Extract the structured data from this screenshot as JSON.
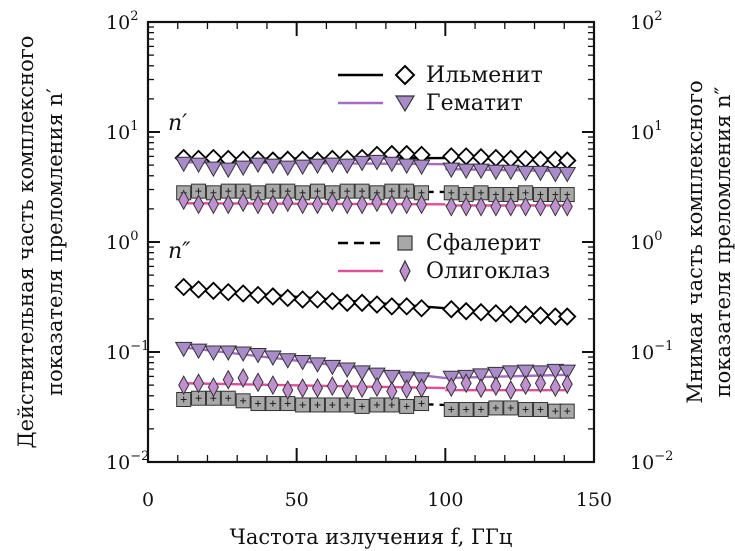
{
  "chart_data": {
    "type": "scatter",
    "xlabel": "Частота излучения f, ГГц",
    "ylabel_left_line1": "Действительная часть комплексного",
    "ylabel_left_line2": "показателя преломления n′",
    "ylabel_right_line1": "Мнимая часть комплексного",
    "ylabel_right_line2": "показателя преломления n″",
    "xlim": [
      0,
      150
    ],
    "ylim": [
      0.01,
      100
    ],
    "yscale": "log",
    "x_ticks": [
      "0",
      "50",
      "100",
      "150"
    ],
    "y_tick_bases": [
      "10",
      "10",
      "10",
      "10",
      "10"
    ],
    "y_tick_exps": [
      "−2",
      "−1",
      "0",
      "1",
      "2"
    ],
    "panel_labels": [
      "n′",
      "n″"
    ],
    "legend_upper": [
      "Ильменит",
      "Гематит"
    ],
    "legend_lower": [
      "Сфалерит",
      "Олигоклаз"
    ],
    "colors": {
      "ilmenite": "#000000",
      "hematite": "#a56cc1",
      "sphalerite": "#000000",
      "oligoclase": "#e0509a",
      "hematite_marker_fill": "#a98bc9",
      "sphalerite_marker_fill": "#a8a8a8",
      "oligoclase_marker_fill": "#c08fd0"
    },
    "x": [
      12,
      17,
      22,
      27,
      32,
      37,
      42,
      47,
      52,
      57,
      62,
      67,
      72,
      77,
      82,
      87,
      92,
      97,
      102,
      107,
      112,
      117,
      122,
      127,
      132,
      137,
      141
    ],
    "series": [
      {
        "name": "Ильменит",
        "part": "n′",
        "line_segments": [
          [
            [
              12,
              5.7
            ],
            [
              100,
              5.8
            ]
          ],
          [
            [
              100,
              6.0
            ],
            [
              141,
              5.7
            ]
          ]
        ],
        "values": [
          5.8,
          5.7,
          5.8,
          5.7,
          5.6,
          5.6,
          5.5,
          5.6,
          5.6,
          5.5,
          5.7,
          5.7,
          5.8,
          6.2,
          6.3,
          6.3,
          6.2,
          null,
          6.0,
          6.0,
          5.9,
          5.8,
          5.7,
          5.7,
          5.6,
          5.6,
          5.5
        ]
      },
      {
        "name": "Гематит",
        "part": "n′",
        "line_segments": [
          [
            [
              12,
              5.3
            ],
            [
              100,
              5.1
            ]
          ],
          [
            [
              100,
              4.6
            ],
            [
              141,
              4.4
            ]
          ]
        ],
        "values": [
          5.2,
          5.1,
          4.7,
          4.6,
          4.8,
          5.1,
          5.0,
          4.8,
          4.9,
          5.0,
          5.1,
          5.0,
          5.3,
          5.4,
          5.2,
          5.0,
          4.9,
          null,
          4.6,
          4.5,
          4.5,
          4.4,
          4.4,
          4.3,
          4.3,
          4.2,
          4.2
        ]
      },
      {
        "name": "Сфалерит",
        "part": "n′",
        "line_segments": [
          [
            [
              12,
              2.85
            ],
            [
              100,
              2.85
            ]
          ],
          [
            [
              100,
              2.75
            ],
            [
              141,
              2.75
            ]
          ]
        ],
        "values": [
          2.8,
          2.9,
          2.8,
          2.9,
          2.9,
          2.8,
          2.9,
          2.9,
          2.8,
          2.9,
          2.8,
          2.9,
          2.9,
          2.8,
          2.9,
          2.9,
          2.8,
          null,
          2.8,
          2.7,
          2.8,
          2.7,
          2.7,
          2.8,
          2.7,
          2.7,
          2.7
        ]
      },
      {
        "name": "Олигоклаз",
        "part": "n′",
        "line_segments": [
          [
            [
              12,
              2.25
            ],
            [
              100,
              2.2
            ]
          ],
          [
            [
              100,
              2.15
            ],
            [
              141,
              2.15
            ]
          ]
        ],
        "values": [
          2.4,
          2.2,
          2.2,
          2.2,
          2.3,
          2.2,
          2.2,
          2.3,
          2.2,
          2.2,
          2.3,
          2.2,
          2.2,
          2.3,
          2.2,
          2.2,
          2.2,
          null,
          2.1,
          2.1,
          2.1,
          2.1,
          2.1,
          2.1,
          2.1,
          2.1,
          2.1
        ]
      },
      {
        "name": "Ильменит",
        "part": "n″",
        "line_segments": [
          [
            [
              12,
              0.38
            ],
            [
              100,
              0.25
            ]
          ],
          [
            [
              100,
              0.245
            ],
            [
              141,
              0.21
            ]
          ]
        ],
        "values": [
          0.39,
          0.37,
          0.36,
          0.35,
          0.34,
          0.33,
          0.32,
          0.31,
          0.3,
          0.3,
          0.29,
          0.28,
          0.28,
          0.27,
          0.26,
          0.26,
          0.25,
          null,
          0.245,
          0.235,
          0.23,
          0.225,
          0.22,
          0.22,
          0.215,
          0.21,
          0.21
        ]
      },
      {
        "name": "Гематит",
        "part": "n″",
        "line_segments": [
          [
            [
              12,
              0.11
            ],
            [
              100,
              0.058
            ]
          ],
          [
            [
              100,
              0.058
            ],
            [
              141,
              0.062
            ]
          ]
        ],
        "values": [
          0.108,
          0.104,
          0.1,
          0.1,
          0.098,
          0.095,
          0.09,
          0.085,
          0.082,
          0.078,
          0.074,
          0.07,
          0.066,
          0.063,
          0.06,
          0.058,
          0.057,
          null,
          0.059,
          0.06,
          0.062,
          0.064,
          0.066,
          0.067,
          0.066,
          0.068,
          0.067
        ]
      },
      {
        "name": "Сфалерит",
        "part": "n″",
        "line_segments": [
          [
            [
              12,
              0.039
            ],
            [
              100,
              0.033
            ]
          ],
          [
            [
              100,
              0.03
            ],
            [
              141,
              0.03
            ]
          ]
        ],
        "values": [
          0.037,
          0.038,
          0.038,
          0.038,
          0.036,
          0.034,
          0.034,
          0.034,
          0.033,
          0.033,
          0.033,
          0.033,
          0.032,
          0.033,
          0.033,
          0.032,
          0.034,
          null,
          0.03,
          0.03,
          0.03,
          0.031,
          0.031,
          0.03,
          0.03,
          0.029,
          0.029
        ]
      },
      {
        "name": "Олигоклаз",
        "part": "n″",
        "line_segments": [
          [
            [
              12,
              0.052
            ],
            [
              100,
              0.047
            ]
          ],
          [
            [
              100,
              0.045
            ],
            [
              141,
              0.045
            ]
          ]
        ],
        "values": [
          0.05,
          0.052,
          0.048,
          0.056,
          0.058,
          0.053,
          0.05,
          0.045,
          0.047,
          0.047,
          0.049,
          0.046,
          0.047,
          0.048,
          0.044,
          0.046,
          0.047,
          null,
          0.048,
          0.052,
          0.047,
          0.049,
          0.045,
          0.05,
          0.052,
          0.048,
          0.051
        ]
      }
    ]
  }
}
